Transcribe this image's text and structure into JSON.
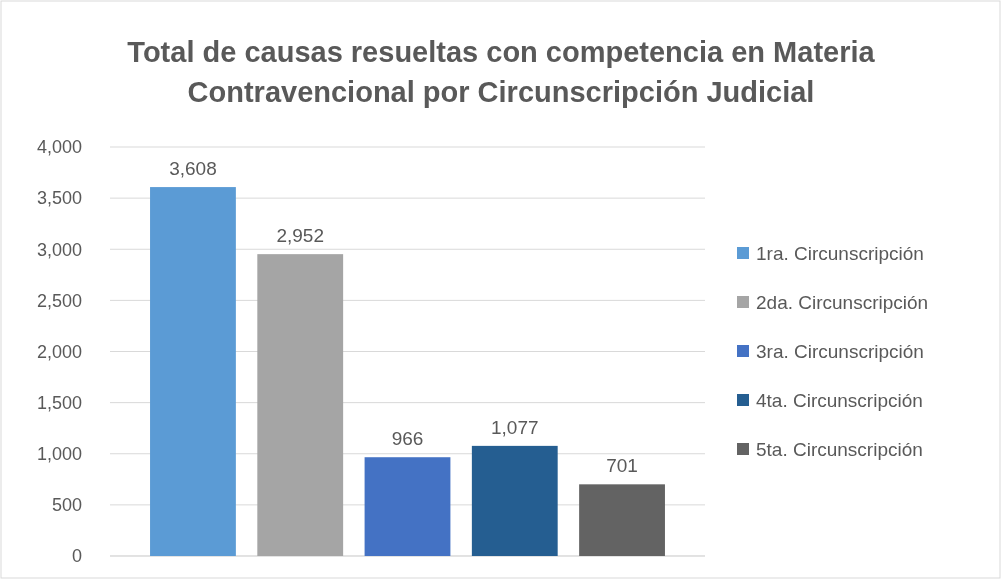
{
  "chart_data": {
    "type": "bar",
    "title": "Total de causas resueltas con competencia en Materia Contravencional por Circunscripción Judicial",
    "categories": [
      null
    ],
    "series": [
      {
        "name": "1ra. Circunscripción",
        "color": "#5b9bd5",
        "values": [
          3608
        ],
        "value_labels": [
          "3,608"
        ]
      },
      {
        "name": "2da. Circunscripción",
        "color": "#a5a5a5",
        "values": [
          2952
        ],
        "value_labels": [
          "2,952"
        ]
      },
      {
        "name": "3ra. Circunscripción",
        "color": "#4472c4",
        "values": [
          966
        ],
        "value_labels": [
          "966"
        ]
      },
      {
        "name": "4ta. Circunscripción",
        "color": "#255e91",
        "values": [
          1077
        ],
        "value_labels": [
          "1,077"
        ]
      },
      {
        "name": "5ta. Circunscripción",
        "color": "#636363",
        "values": [
          701
        ],
        "value_labels": [
          "701"
        ]
      }
    ],
    "ylim": [
      0,
      4000
    ],
    "yticks": [
      {
        "value": 0,
        "label": "0"
      },
      {
        "value": 500,
        "label": "500"
      },
      {
        "value": 1000,
        "label": "1,000"
      },
      {
        "value": 1500,
        "label": "1,500"
      },
      {
        "value": 2000,
        "label": "2,000"
      },
      {
        "value": 2500,
        "label": "2,500"
      },
      {
        "value": 3000,
        "label": "3,000"
      },
      {
        "value": 3500,
        "label": "3,500"
      },
      {
        "value": 4000,
        "label": "4,000"
      }
    ],
    "grid": "y",
    "legend": "right"
  }
}
